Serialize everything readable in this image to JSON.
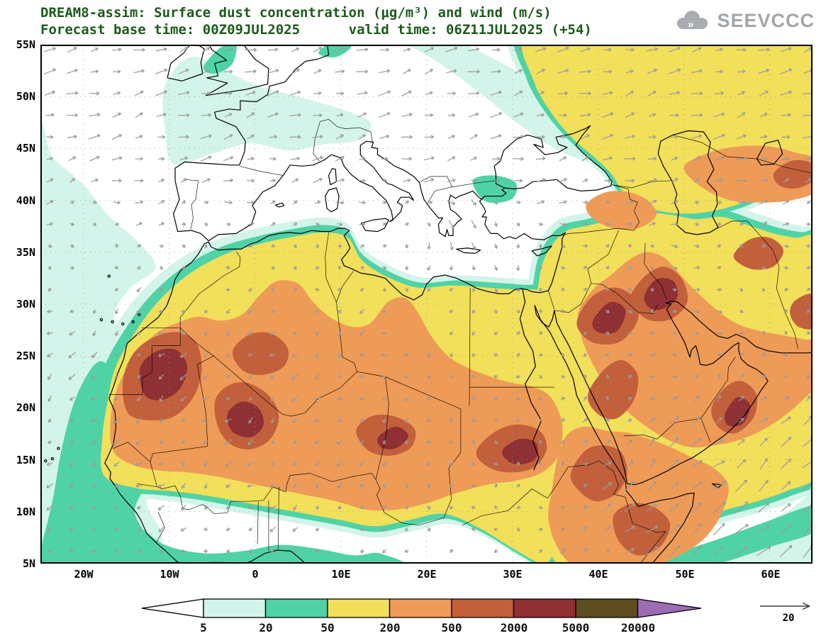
{
  "header": {
    "line1": "DREAM8-assim: Surface dust concentration (μg/m³) and wind (m/s)",
    "line2": "Forecast base time: 00Z09JUL2025      valid time: 06Z11JUL2025 (+54)"
  },
  "logo": {
    "text": "SEEVCCC"
  },
  "axes": {
    "lat": [
      "55N",
      "50N",
      "45N",
      "40N",
      "35N",
      "30N",
      "25N",
      "20N",
      "15N",
      "10N",
      "5N"
    ],
    "lon": [
      "20W",
      "10W",
      "0",
      "10E",
      "20E",
      "30E",
      "40E",
      "50E",
      "60E"
    ]
  },
  "legend": {
    "levels": [
      "5",
      "20",
      "50",
      "200",
      "500",
      "2000",
      "5000",
      "20000"
    ],
    "cell_colors": [
      "#d3f4ea",
      "#4fd3a6",
      "#f2df5a",
      "#ee9b57",
      "#c2603c",
      "#8f3034",
      "#5c4e21"
    ],
    "low_arrow_color": "#ffffff",
    "high_arrow_color": "#9d6cb4"
  },
  "wind_reference": {
    "label": "20"
  }
}
